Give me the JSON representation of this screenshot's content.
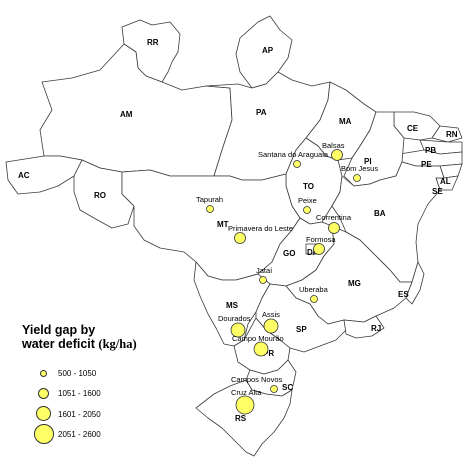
{
  "states": {
    "RR": "RR",
    "AP": "AP",
    "AM": "AM",
    "PA": "PA",
    "MA": "MA",
    "CE": "CE",
    "RN": "RN",
    "PB": "PB",
    "PE": "PE",
    "AL": "AL",
    "SE": "SE",
    "PI": "PI",
    "AC": "AC",
    "RO": "RO",
    "TO": "TO",
    "BA": "BA",
    "MT": "MT",
    "GO": "GO",
    "DF": "DF",
    "MG": "MG",
    "ES": "ES",
    "MS": "MS",
    "SP": "SP",
    "RJ": "RJ",
    "PR": "PR",
    "SC": "SC",
    "RS": "RS"
  },
  "sites": [
    {
      "name": "Balsas",
      "class": 2
    },
    {
      "name": "Santana do Araguaia",
      "class": 1
    },
    {
      "name": "Bom Jesus",
      "class": 1
    },
    {
      "name": "Tapurah",
      "class": 1
    },
    {
      "name": "Peixe",
      "class": 1
    },
    {
      "name": "Correntina",
      "class": 2
    },
    {
      "name": "Primavera do Leste",
      "class": 2
    },
    {
      "name": "Formosa",
      "class": 2
    },
    {
      "name": "Jataí",
      "class": 1
    },
    {
      "name": "Uberaba",
      "class": 1
    },
    {
      "name": "Dourados",
      "class": 3
    },
    {
      "name": "Assis",
      "class": 3
    },
    {
      "name": "Campo Mourão",
      "class": 3
    },
    {
      "name": "Campos Novos",
      "class": 1
    },
    {
      "name": "Cruz Alta",
      "class": 4
    }
  ],
  "legend": {
    "title_line1": "Yield gap by",
    "title_line2": "water deficit",
    "unit": "(kg/ha)",
    "classes": [
      {
        "label": "500 - 1050"
      },
      {
        "label": "1051 - 1600"
      },
      {
        "label": "1601 - 2050"
      },
      {
        "label": "2051 - 2600"
      }
    ],
    "symbol_color": "#ffff66"
  }
}
